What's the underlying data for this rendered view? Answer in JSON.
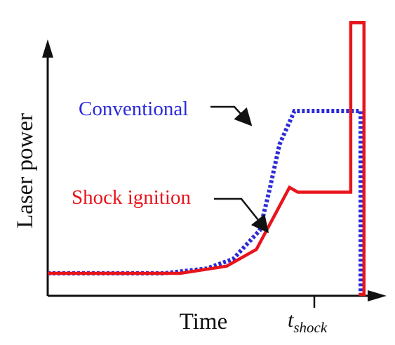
{
  "chart_data": {
    "type": "line",
    "xlabel": "Time",
    "ylabel": "Laser power",
    "x_tick": {
      "main": "t",
      "sub": "shock"
    },
    "colors": {
      "conventional": "#2b2bd6",
      "shock": "#e8141c",
      "axis": "#111111"
    },
    "series": [
      {
        "name": "Conventional",
        "style": "dotted",
        "x": [
          0.0,
          0.35,
          0.48,
          0.56,
          0.64,
          0.67,
          0.7,
          0.745,
          0.76,
          0.94,
          0.945,
          0.945
        ],
        "y": [
          0.1,
          0.1,
          0.12,
          0.16,
          0.28,
          0.45,
          0.64,
          0.78,
          0.78,
          0.78,
          0.78,
          0.0
        ]
      },
      {
        "name": "Shock ignition",
        "style": "solid",
        "x": [
          0.0,
          0.4,
          0.54,
          0.63,
          0.68,
          0.73,
          0.755,
          0.91,
          0.915,
          0.915,
          0.955,
          0.955,
          0.94
        ],
        "y": [
          0.1,
          0.1,
          0.13,
          0.2,
          0.33,
          0.46,
          0.44,
          0.44,
          0.44,
          1.15,
          1.15,
          0.0,
          0.0
        ]
      }
    ]
  }
}
